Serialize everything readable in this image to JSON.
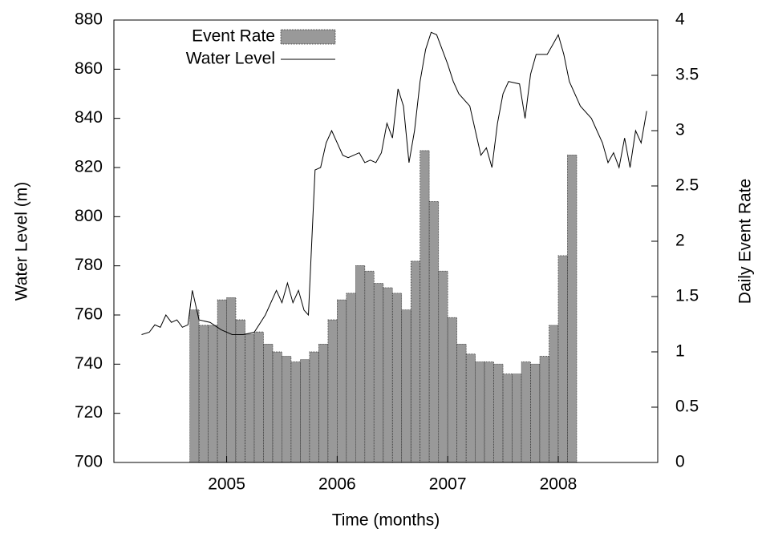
{
  "chart_data": {
    "type": "combo",
    "xlabel": "Time (months)",
    "ylabel": "Water Level (m)",
    "y2label": "Daily Event Rate",
    "xlim": [
      2003.98,
      2008.9
    ],
    "xticks": [
      2005,
      2006,
      2007,
      2008
    ],
    "ylim": [
      700,
      880
    ],
    "yticks": [
      700,
      720,
      740,
      760,
      780,
      800,
      820,
      840,
      860,
      880
    ],
    "y2lim": [
      0,
      4
    ],
    "y2ticks": [
      0,
      0.5,
      1,
      1.5,
      2,
      2.5,
      3,
      3.5,
      4
    ],
    "series": [
      {
        "name": "Event Rate",
        "type": "histogram",
        "axis": "y2",
        "color": "#999999",
        "bins": [
          2004.667,
          2004.75,
          2004.833,
          2004.917,
          2005,
          2005.083,
          2005.167,
          2005.25,
          2005.333,
          2005.417,
          2005.5,
          2005.583,
          2005.667,
          2005.75,
          2005.833,
          2005.917,
          2006,
          2006.083,
          2006.167,
          2006.25,
          2006.333,
          2006.417,
          2006.5,
          2006.583,
          2006.667,
          2006.75,
          2006.833,
          2006.917,
          2007,
          2007.083,
          2007.167,
          2007.25,
          2007.333,
          2007.417,
          2007.5,
          2007.583,
          2007.667,
          2007.75,
          2007.833,
          2007.917,
          2008,
          2008.083,
          2008.167
        ],
        "values": [
          1.38,
          1.24,
          1.24,
          1.47,
          1.49,
          1.29,
          1.16,
          1.18,
          1.07,
          1.0,
          0.96,
          0.91,
          0.93,
          1.0,
          1.07,
          1.29,
          1.47,
          1.53,
          1.78,
          1.73,
          1.62,
          1.58,
          1.53,
          1.38,
          1.82,
          2.82,
          2.36,
          1.73,
          1.31,
          1.07,
          0.98,
          0.91,
          0.91,
          0.89,
          0.8,
          0.8,
          0.91,
          0.89,
          0.96,
          1.24,
          1.87,
          2.78
        ]
      },
      {
        "name": "Water Level",
        "type": "line",
        "color": "#000000",
        "x": [
          2004.23,
          2004.3,
          2004.35,
          2004.4,
          2004.45,
          2004.5,
          2004.55,
          2004.6,
          2004.65,
          2004.69,
          2004.75,
          2004.85,
          2004.95,
          2005.05,
          2005.15,
          2005.25,
          2005.35,
          2005.45,
          2005.5,
          2005.55,
          2005.6,
          2005.65,
          2005.7,
          2005.74,
          2005.77,
          2005.8,
          2005.85,
          2005.9,
          2005.95,
          2006.0,
          2006.05,
          2006.1,
          2006.2,
          2006.25,
          2006.3,
          2006.35,
          2006.4,
          2006.45,
          2006.5,
          2006.55,
          2006.6,
          2006.65,
          2006.7,
          2006.75,
          2006.8,
          2006.85,
          2006.9,
          2006.95,
          2007.0,
          2007.05,
          2007.1,
          2007.2,
          2007.25,
          2007.3,
          2007.35,
          2007.4,
          2007.45,
          2007.5,
          2007.55,
          2007.65,
          2007.7,
          2007.75,
          2007.8,
          2007.9,
          2007.95,
          2008.0,
          2008.05,
          2008.1,
          2008.2,
          2008.3,
          2008.35,
          2008.4,
          2008.45,
          2008.5,
          2008.55,
          2008.6,
          2008.65,
          2008.7,
          2008.75,
          2008.8
        ],
        "values": [
          752,
          753,
          756,
          755,
          760,
          757,
          758,
          755,
          756,
          770,
          758,
          757,
          754,
          752,
          752,
          753,
          760,
          770,
          765,
          773,
          765,
          770,
          762,
          760,
          790,
          819,
          820,
          830,
          835,
          830,
          825,
          824,
          826,
          822,
          823,
          822,
          826,
          838,
          832,
          852,
          845,
          822,
          835,
          855,
          868,
          875,
          874,
          868,
          862,
          855,
          850,
          845,
          835,
          825,
          828,
          820,
          838,
          850,
          855,
          854,
          840,
          858,
          866,
          866,
          870,
          874,
          866,
          855,
          845,
          840,
          835,
          830,
          822,
          826,
          820,
          832,
          820,
          835,
          830,
          843
        ]
      }
    ]
  }
}
